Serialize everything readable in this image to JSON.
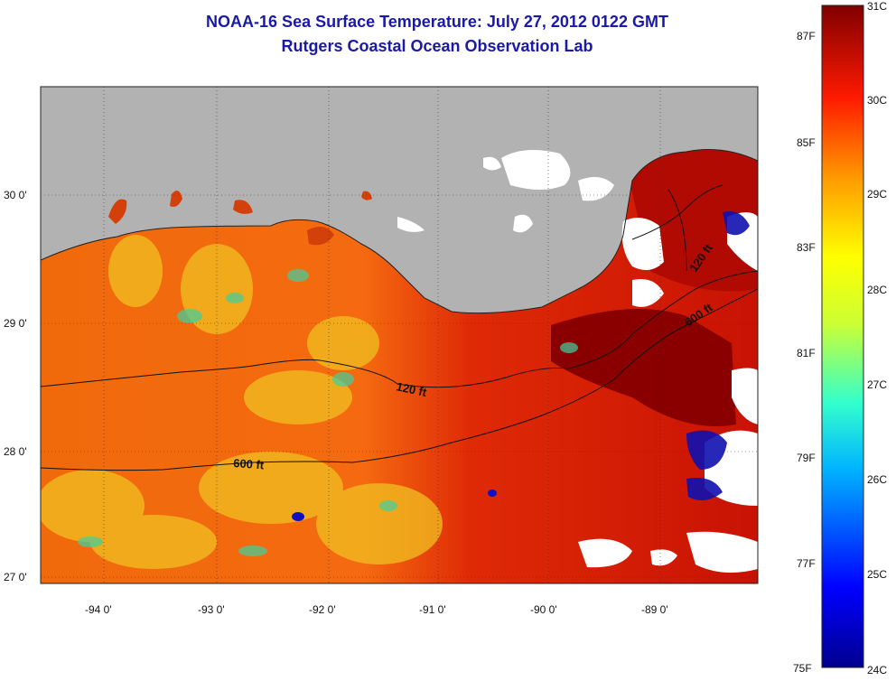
{
  "header": {
    "title": "NOAA-16 Sea Surface Temperature:  July 27, 2012 0122 GMT",
    "subtitle": "Rutgers Coastal Ocean Observation Lab"
  },
  "map": {
    "lat_labels": [
      "30 0'",
      "29 0'",
      "28 0'",
      "27 0'"
    ],
    "lon_labels": [
      "-94 0'",
      "-93 0'",
      "-92 0'",
      "-91 0'",
      "-90 0'",
      "-89 0'"
    ],
    "contours": [
      {
        "label": "120 ft"
      },
      {
        "label": "600 ft"
      },
      {
        "label": "120 ft"
      },
      {
        "label": "600 ft"
      }
    ],
    "colors": {
      "land": "#b2b2b2",
      "cloud": "#ffffff",
      "warm": "#d21a00",
      "hot": "#8a0000"
    }
  },
  "colorbar": {
    "fahrenheit": [
      "87F",
      "85F",
      "83F",
      "81F",
      "79F",
      "77F",
      "75F"
    ],
    "celsius": [
      "31C",
      "30C",
      "29C",
      "28C",
      "27C",
      "26C",
      "25C",
      "24C"
    ]
  }
}
